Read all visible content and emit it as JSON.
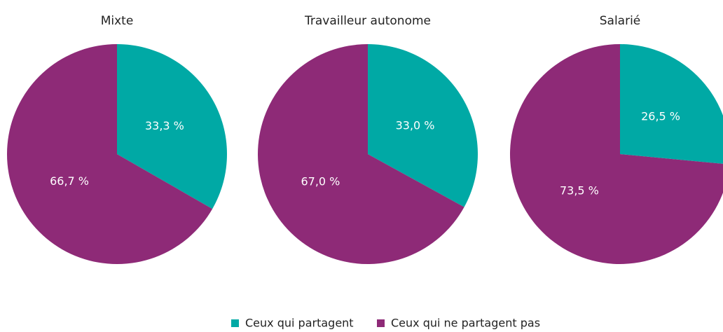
{
  "chart_data": [
    {
      "type": "pie",
      "title": "Mixte",
      "categories": [
        "Ceux qui partagent",
        "Ceux qui ne partagent pas"
      ],
      "values": [
        33.3,
        66.7
      ],
      "value_labels": [
        "33,3 %",
        "66,7 %"
      ],
      "colors": [
        "#00a9a5",
        "#8e2a77"
      ]
    },
    {
      "type": "pie",
      "title": "Travailleur autonome",
      "categories": [
        "Ceux qui partagent",
        "Ceux qui ne partagent pas"
      ],
      "values": [
        33.0,
        67.0
      ],
      "value_labels": [
        "33,0 %",
        "67,0 %"
      ],
      "colors": [
        "#00a9a5",
        "#8e2a77"
      ]
    },
    {
      "type": "pie",
      "title": "Salarié",
      "categories": [
        "Ceux qui partagent",
        "Ceux qui ne partagent pas"
      ],
      "values": [
        26.5,
        73.5
      ],
      "value_labels": [
        "26,5 %",
        "73,5 %"
      ],
      "colors": [
        "#00a9a5",
        "#8e2a77"
      ]
    }
  ]
}
